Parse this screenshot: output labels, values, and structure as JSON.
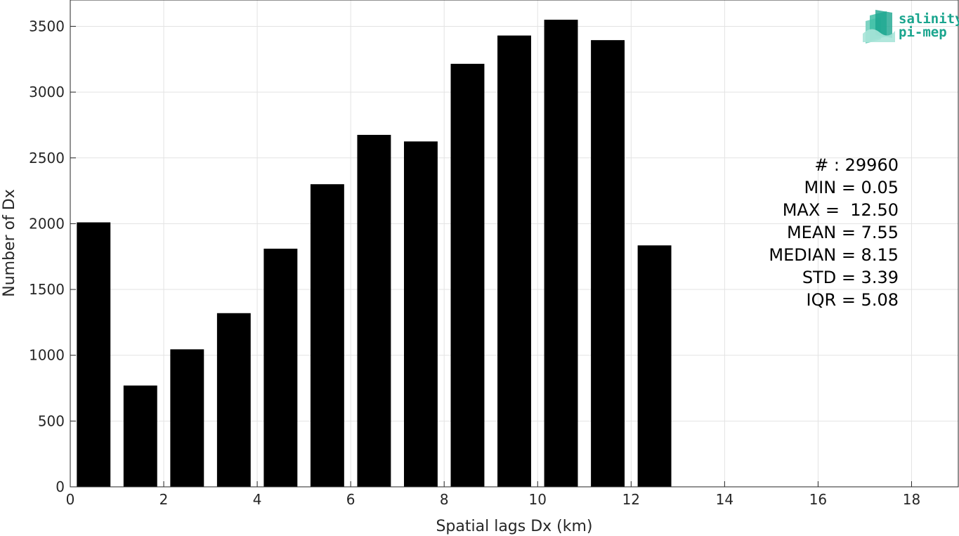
{
  "chart_data": {
    "type": "bar",
    "xlabel": "Spatial lags Dx (km)",
    "ylabel": "Number of Dx",
    "xlim": [
      0,
      19
    ],
    "ylim": [
      0,
      3700
    ],
    "xticks": [
      0,
      2,
      4,
      6,
      8,
      10,
      12,
      14,
      16,
      18
    ],
    "yticks": [
      0,
      500,
      1000,
      1500,
      2000,
      2500,
      3000,
      3500
    ],
    "grid": true,
    "bar_color": "#000000",
    "bin_width": 1,
    "x": [
      0.5,
      1.5,
      2.5,
      3.5,
      4.5,
      5.5,
      6.5,
      7.5,
      8.5,
      9.5,
      10.5,
      11.5,
      12.5
    ],
    "values": [
      2010,
      770,
      1045,
      1320,
      1810,
      2300,
      2675,
      2625,
      3215,
      3430,
      3550,
      3395,
      1835
    ],
    "annotations": [
      "# : 29960",
      "MIN = 0.05",
      "MAX =  12.50",
      "MEAN = 7.55",
      "MEDIAN = 8.15",
      "STD = 3.39",
      "IQR = 5.08"
    ]
  },
  "logo": {
    "line1": "salinity",
    "line2": "pi-mep",
    "color": "#1aa58e"
  }
}
